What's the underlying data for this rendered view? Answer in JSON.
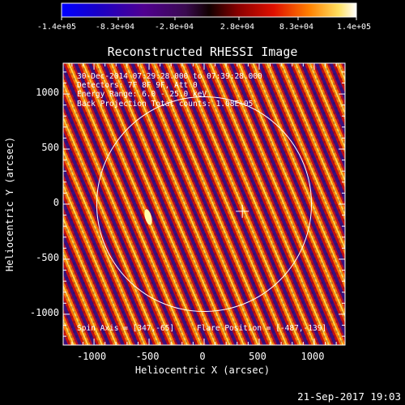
{
  "colorbar": {
    "ticks": [
      "-1.4e+05",
      "-8.3e+04",
      "-2.8e+04",
      "2.8e+04",
      "8.3e+04",
      "1.4e+05"
    ],
    "min": -140000,
    "max": 140000
  },
  "chart_data": {
    "type": "heatmap",
    "title": "Reconstructed RHESSI Image",
    "xlabel": "Heliocentric X (arcsec)",
    "ylabel": "Heliocentric Y (arcsec)",
    "xlim": [
      -1280,
      1280
    ],
    "ylim": [
      -1280,
      1280
    ],
    "x_ticks": [
      "-1000",
      "-500",
      "0",
      "500",
      "1000"
    ],
    "x_tick_values": [
      -1000,
      -500,
      0,
      500,
      1000
    ],
    "y_ticks": [
      "1000",
      "500",
      "0",
      "-500",
      "-1000"
    ],
    "y_tick_values": [
      1000,
      500,
      0,
      -500,
      -1000
    ],
    "solar_disk_radius": 975,
    "spin_axis": [
      347,
      -65
    ],
    "flare_position": [
      -487,
      -139
    ],
    "colormap": "rainbow-black",
    "annotations": {
      "time_range": "30-Dec-2014 07:29:28.000 to 07:39:28.000",
      "detectors": "Detectors: 7F 8F 9F, Att 0",
      "energy": "Energy Range: 6.0 - 25.0 keV",
      "method": "Back Projection    Total counts: 1.08E+05",
      "spin_axis_label": "Spin Axis = [347,-65]",
      "flare_label": "Flare Position = [-487,-139]"
    }
  },
  "footer": {
    "timestamp": "21-Sep-2017 19:03"
  }
}
